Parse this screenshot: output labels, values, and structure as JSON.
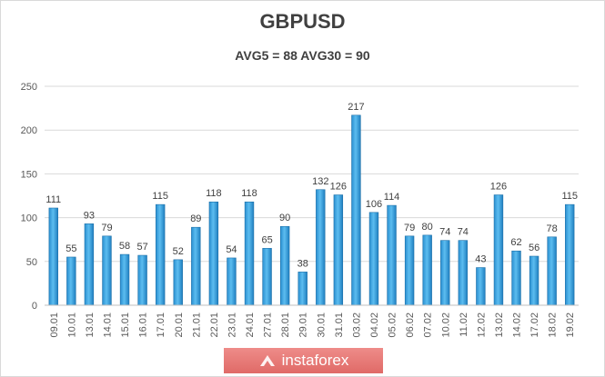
{
  "watermark": {
    "text": "instaforex"
  },
  "chart_data": {
    "type": "bar",
    "title": "GBPUSD",
    "subtitle": "AVG5 = 88 AVG30 = 90",
    "xlabel": "",
    "ylabel": "",
    "ylim": [
      0,
      250
    ],
    "yticks": [
      0,
      50,
      100,
      150,
      200,
      250
    ],
    "grid": true,
    "legend": "none",
    "bar_color": "#2e9fdc",
    "categories": [
      "09.01",
      "10.01",
      "13.01",
      "14.01",
      "15.01",
      "16.01",
      "17.01",
      "20.01",
      "21.01",
      "22.01",
      "23.01",
      "24.01",
      "27.01",
      "28.01",
      "29.01",
      "30.01",
      "31.01",
      "03.02",
      "04.02",
      "05.02",
      "06.02",
      "07.02",
      "10.02",
      "11.02",
      "12.02",
      "13.02",
      "14.02",
      "17.02",
      "18.02",
      "19.02"
    ],
    "values": [
      111,
      55,
      93,
      79,
      58,
      57,
      115,
      52,
      89,
      118,
      54,
      118,
      65,
      90,
      38,
      132,
      126,
      217,
      106,
      114,
      79,
      80,
      74,
      74,
      43,
      126,
      62,
      56,
      78,
      115
    ]
  }
}
